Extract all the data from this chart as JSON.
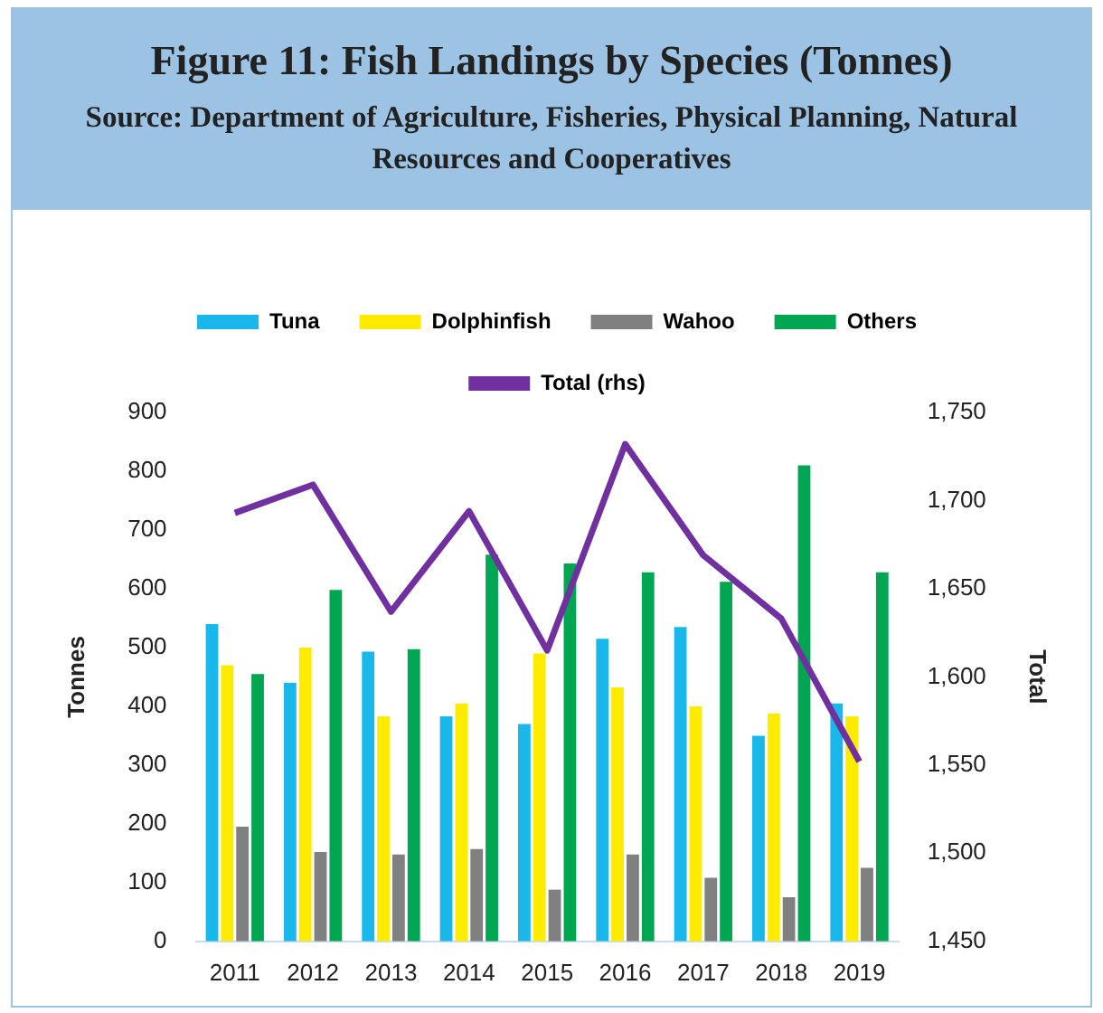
{
  "chart_data": {
    "type": "bar",
    "title": "Figure 11: Fish Landings by Species (Tonnes)",
    "subtitle": "Source: Department of Agriculture, Fisheries, Physical Planning, Natural Resources and Cooperatives",
    "ylabel": "Tonnes",
    "y2label": "Total",
    "categories": [
      "2011",
      "2012",
      "2013",
      "2014",
      "2015",
      "2016",
      "2017",
      "2018",
      "2019"
    ],
    "series": [
      {
        "name": "Tuna",
        "color": "#1ab7ea",
        "values": [
          540,
          440,
          493,
          383,
          370,
          515,
          535,
          350,
          405
        ]
      },
      {
        "name": "Dolphinfish",
        "color": "#ffeb00",
        "values": [
          470,
          500,
          383,
          405,
          490,
          432,
          400,
          388,
          383
        ]
      },
      {
        "name": "Wahoo",
        "color": "#808080",
        "values": [
          195,
          152,
          148,
          157,
          88,
          148,
          108,
          75,
          125
        ]
      },
      {
        "name": "Others",
        "color": "#00a651",
        "values": [
          455,
          598,
          497,
          658,
          643,
          628,
          612,
          810,
          628
        ]
      },
      {
        "name": "Total (rhs)",
        "type": "line",
        "axis": "y2",
        "color": "#7030a0",
        "values": [
          1693,
          1709,
          1637,
          1694,
          1615,
          1732,
          1669,
          1633,
          1552
        ]
      }
    ],
    "ylim": [
      0,
      900
    ],
    "yticks": [
      0,
      100,
      200,
      300,
      400,
      500,
      600,
      700,
      800,
      900
    ],
    "y2lim": [
      1450,
      1750
    ],
    "y2ticks": [
      {
        "value": 1450,
        "label": "1,450"
      },
      {
        "value": 1500,
        "label": "1,500"
      },
      {
        "value": 1550,
        "label": "1,550"
      },
      {
        "value": 1600,
        "label": "1,600"
      },
      {
        "value": 1650,
        "label": "1,650"
      },
      {
        "value": 1700,
        "label": "1,700"
      },
      {
        "value": 1750,
        "label": "1,750"
      }
    ],
    "grid": false,
    "legend": "top",
    "marker": "none"
  }
}
